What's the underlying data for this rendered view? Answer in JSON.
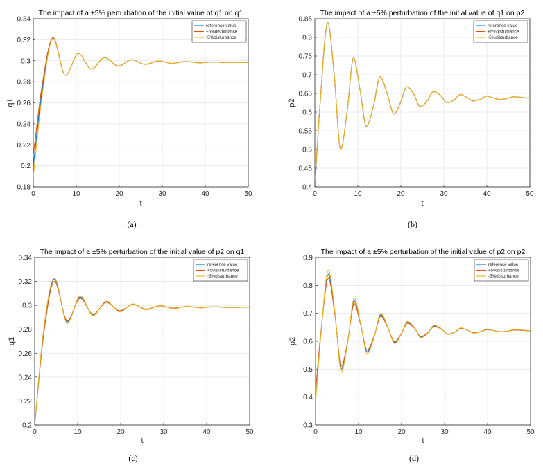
{
  "colors": {
    "reference": "#0072BD",
    "plus5": "#D95319",
    "minus5": "#EDB120",
    "grid": "#e6e6e6",
    "axis": "#262626"
  },
  "chart_data": [
    {
      "type": "line",
      "caption": "(a)",
      "title": "The impact of a ±5% perturbation of the initial value of q1 on q1",
      "xlabel": "t",
      "ylabel": "q1",
      "xlim": [
        0,
        50
      ],
      "ylim": [
        0.18,
        0.34
      ],
      "xticks": [
        0,
        10,
        20,
        30,
        40,
        50
      ],
      "yticks": [
        0.18,
        0.2,
        0.22,
        0.24,
        0.26,
        0.28,
        0.3,
        0.32,
        0.34
      ],
      "ytick_labels": [
        "0.18",
        "0.2",
        "0.22",
        "0.24",
        "0.26",
        "0.28",
        "0.3",
        "0.32",
        "0.34"
      ],
      "grid": true,
      "legend_position": "top-right",
      "legend": [
        "reference value",
        "+5%disturbance",
        "-5%disturbance"
      ],
      "series": [
        {
          "x": [
            0,
            2,
            4.6,
            7.5,
            10.5,
            13.5,
            16.6,
            19.8,
            22.9,
            26,
            29.2,
            32.3,
            35.5,
            38.6,
            41.8,
            45,
            50
          ],
          "values": [
            0.2,
            0.27,
            0.321,
            0.286,
            0.307,
            0.292,
            0.303,
            0.295,
            0.301,
            0.2965,
            0.2998,
            0.2975,
            0.2992,
            0.298,
            0.2988,
            0.2982,
            0.2985
          ]
        },
        {
          "x": [
            0,
            2,
            4.6,
            7.5,
            10.5,
            13.5,
            16.6,
            19.8,
            22.9,
            26,
            29.2,
            32.3,
            35.5,
            38.6,
            41.8,
            45,
            50
          ],
          "values": [
            0.21,
            0.275,
            0.322,
            0.286,
            0.307,
            0.292,
            0.303,
            0.295,
            0.301,
            0.2965,
            0.2998,
            0.2975,
            0.2992,
            0.298,
            0.2988,
            0.2982,
            0.2985
          ]
        },
        {
          "x": [
            0,
            2,
            4.6,
            7.5,
            10.5,
            13.5,
            16.6,
            19.8,
            22.9,
            26,
            29.2,
            32.3,
            35.5,
            38.6,
            41.8,
            45,
            50
          ],
          "values": [
            0.19,
            0.265,
            0.321,
            0.286,
            0.307,
            0.292,
            0.303,
            0.295,
            0.301,
            0.2965,
            0.2998,
            0.2975,
            0.2992,
            0.298,
            0.2988,
            0.2982,
            0.2985
          ]
        }
      ]
    },
    {
      "type": "line",
      "caption": "(b)",
      "title": "The impact of a ±5% perturbation of the initial value of q1 on p2",
      "xlabel": "t",
      "ylabel": "p2",
      "xlim": [
        0,
        50
      ],
      "ylim": [
        0.4,
        0.85
      ],
      "xticks": [
        0,
        10,
        20,
        30,
        40,
        50
      ],
      "yticks": [
        0.4,
        0.45,
        0.5,
        0.55,
        0.6,
        0.65,
        0.7,
        0.75,
        0.8,
        0.85
      ],
      "ytick_labels": [
        "0.4",
        "0.45",
        "0.5",
        "0.55",
        "0.6",
        "0.65",
        "0.7",
        "0.75",
        "0.8",
        "0.85"
      ],
      "grid": true,
      "legend_position": "top-right",
      "legend": [
        "reference value",
        "+5%disturbance",
        "-5%disturbance"
      ],
      "series": [
        {
          "x": [
            0,
            1.2,
            3,
            4.5,
            6,
            7.5,
            9,
            10.5,
            12,
            13.6,
            15.2,
            16.8,
            18.4,
            19.9,
            21.4,
            23,
            24.5,
            26,
            27.6,
            29.2,
            30.8,
            32.3,
            33.8,
            35.3,
            36.8,
            38.4,
            40,
            41.5,
            43,
            44.6,
            46.2,
            50
          ],
          "values": [
            0.4,
            0.62,
            0.84,
            0.7,
            0.5,
            0.6,
            0.745,
            0.66,
            0.562,
            0.615,
            0.695,
            0.65,
            0.595,
            0.625,
            0.668,
            0.648,
            0.615,
            0.628,
            0.655,
            0.645,
            0.625,
            0.632,
            0.647,
            0.64,
            0.63,
            0.634,
            0.643,
            0.638,
            0.634,
            0.636,
            0.641,
            0.637
          ]
        },
        {
          "x": [
            0,
            1.2,
            3,
            4.5,
            6,
            7.5,
            9,
            10.5,
            12,
            13.6,
            15.2,
            16.8,
            18.4,
            19.9,
            21.4,
            23,
            24.5,
            26,
            27.6,
            29.2,
            30.8,
            32.3,
            33.8,
            35.3,
            36.8,
            38.4,
            40,
            41.5,
            43,
            44.6,
            46.2,
            50
          ],
          "values": [
            0.405,
            0.62,
            0.84,
            0.7,
            0.5,
            0.6,
            0.745,
            0.66,
            0.562,
            0.615,
            0.695,
            0.65,
            0.595,
            0.625,
            0.668,
            0.648,
            0.615,
            0.628,
            0.655,
            0.645,
            0.625,
            0.632,
            0.647,
            0.64,
            0.63,
            0.634,
            0.643,
            0.638,
            0.634,
            0.636,
            0.641,
            0.637
          ]
        },
        {
          "x": [
            0,
            1.2,
            3,
            4.5,
            6,
            7.5,
            9,
            10.5,
            12,
            13.6,
            15.2,
            16.8,
            18.4,
            19.9,
            21.4,
            23,
            24.5,
            26,
            27.6,
            29.2,
            30.8,
            32.3,
            33.8,
            35.3,
            36.8,
            38.4,
            40,
            41.5,
            43,
            44.6,
            46.2,
            50
          ],
          "values": [
            0.41,
            0.62,
            0.84,
            0.7,
            0.5,
            0.6,
            0.745,
            0.66,
            0.562,
            0.615,
            0.695,
            0.65,
            0.595,
            0.625,
            0.668,
            0.648,
            0.615,
            0.628,
            0.655,
            0.645,
            0.625,
            0.632,
            0.647,
            0.64,
            0.63,
            0.634,
            0.643,
            0.638,
            0.634,
            0.636,
            0.641,
            0.637
          ]
        }
      ]
    },
    {
      "type": "line",
      "caption": "(c)",
      "title": "The impact of a ±5% perturbation of the initial value of p2 on q1",
      "xlabel": "t",
      "ylabel": "q1",
      "xlim": [
        0,
        50
      ],
      "ylim": [
        0.2,
        0.34
      ],
      "xticks": [
        0,
        10,
        20,
        30,
        40,
        50
      ],
      "yticks": [
        0.2,
        0.22,
        0.24,
        0.26,
        0.28,
        0.3,
        0.32,
        0.34
      ],
      "ytick_labels": [
        "0.2",
        "0.22",
        "0.24",
        "0.26",
        "0.28",
        "0.3",
        "0.32",
        "0.34"
      ],
      "grid": true,
      "legend_position": "top-right",
      "legend": [
        "reference value",
        "+5%disturbance",
        "-5%disturbance"
      ],
      "series": [
        {
          "x": [
            0,
            2,
            4.6,
            7.6,
            10.6,
            13.6,
            16.7,
            19.8,
            22.9,
            26,
            29.2,
            32.3,
            35.5,
            38.6,
            41.8,
            45,
            50
          ],
          "values": [
            0.2,
            0.275,
            0.322,
            0.286,
            0.307,
            0.292,
            0.303,
            0.295,
            0.301,
            0.2965,
            0.2998,
            0.2975,
            0.2992,
            0.298,
            0.2988,
            0.2982,
            0.2985
          ]
        },
        {
          "x": [
            0,
            2,
            4.6,
            7.6,
            10.6,
            13.6,
            16.7,
            19.8,
            22.9,
            26,
            29.2,
            32.3,
            35.5,
            38.6,
            41.8,
            45,
            50
          ],
          "values": [
            0.2,
            0.273,
            0.32,
            0.287,
            0.306,
            0.2925,
            0.3025,
            0.2955,
            0.3008,
            0.2968,
            0.2996,
            0.2977,
            0.2991,
            0.2981,
            0.2988,
            0.2982,
            0.2985
          ]
        },
        {
          "x": [
            0,
            2,
            4.6,
            7.6,
            10.6,
            13.6,
            16.7,
            19.8,
            22.9,
            26,
            29.2,
            32.3,
            35.5,
            38.6,
            41.8,
            45,
            50
          ],
          "values": [
            0.2,
            0.277,
            0.323,
            0.285,
            0.308,
            0.2915,
            0.3035,
            0.2945,
            0.3012,
            0.2962,
            0.3,
            0.2973,
            0.2993,
            0.2979,
            0.2989,
            0.2982,
            0.2985
          ]
        }
      ]
    },
    {
      "type": "line",
      "caption": "(d)",
      "title": "The impact of a ±5% perturbation of the initial value of p2 on p2",
      "xlabel": "t",
      "ylabel": "p2",
      "xlim": [
        0,
        50
      ],
      "ylim": [
        0.3,
        0.9
      ],
      "xticks": [
        0,
        10,
        20,
        30,
        40,
        50
      ],
      "yticks": [
        0.3,
        0.4,
        0.5,
        0.6,
        0.7,
        0.8,
        0.9
      ],
      "ytick_labels": [
        "0.3",
        "0.4",
        "0.5",
        "0.6",
        "0.7",
        "0.8",
        "0.9"
      ],
      "grid": true,
      "legend_position": "top-right",
      "legend": [
        "reference value",
        "+5%disturbance",
        "-5%disturbance"
      ],
      "series": [
        {
          "x": [
            0,
            1.2,
            3,
            4.5,
            6,
            7.5,
            9,
            10.5,
            12,
            13.6,
            15.2,
            16.8,
            18.4,
            19.9,
            21.4,
            23,
            24.5,
            26,
            27.6,
            29.2,
            30.8,
            32.3,
            33.8,
            35.3,
            36.8,
            38.4,
            40,
            41.5,
            43,
            44.6,
            46.2,
            50
          ],
          "values": [
            0.4,
            0.62,
            0.84,
            0.7,
            0.5,
            0.6,
            0.745,
            0.66,
            0.562,
            0.615,
            0.695,
            0.65,
            0.595,
            0.625,
            0.668,
            0.648,
            0.615,
            0.628,
            0.655,
            0.645,
            0.625,
            0.632,
            0.647,
            0.64,
            0.63,
            0.634,
            0.643,
            0.638,
            0.634,
            0.636,
            0.641,
            0.637
          ]
        },
        {
          "x": [
            0,
            1.2,
            3,
            4.5,
            6,
            7.5,
            9,
            10.5,
            12,
            13.6,
            15.2,
            16.8,
            18.4,
            19.9,
            21.4,
            23,
            24.5,
            26,
            27.6,
            29.2,
            30.8,
            32.3,
            33.8,
            35.3,
            36.8,
            38.4,
            40,
            41.5,
            43,
            44.6,
            46.2,
            50
          ],
          "values": [
            0.42,
            0.625,
            0.825,
            0.695,
            0.51,
            0.602,
            0.735,
            0.658,
            0.568,
            0.617,
            0.69,
            0.649,
            0.598,
            0.626,
            0.665,
            0.647,
            0.617,
            0.629,
            0.653,
            0.644,
            0.626,
            0.632,
            0.646,
            0.64,
            0.631,
            0.634,
            0.642,
            0.638,
            0.634,
            0.636,
            0.64,
            0.637
          ]
        },
        {
          "x": [
            0,
            1.2,
            3,
            4.5,
            6,
            7.5,
            9,
            10.5,
            12,
            13.6,
            15.2,
            16.8,
            18.4,
            19.9,
            21.4,
            23,
            24.5,
            26,
            27.6,
            29.2,
            30.8,
            32.3,
            33.8,
            35.3,
            36.8,
            38.4,
            40,
            41.5,
            43,
            44.6,
            46.2,
            50
          ],
          "values": [
            0.38,
            0.615,
            0.855,
            0.705,
            0.49,
            0.598,
            0.755,
            0.662,
            0.556,
            0.613,
            0.7,
            0.651,
            0.592,
            0.624,
            0.671,
            0.649,
            0.613,
            0.627,
            0.657,
            0.646,
            0.624,
            0.632,
            0.648,
            0.64,
            0.629,
            0.634,
            0.644,
            0.638,
            0.634,
            0.636,
            0.642,
            0.637
          ]
        }
      ]
    }
  ]
}
